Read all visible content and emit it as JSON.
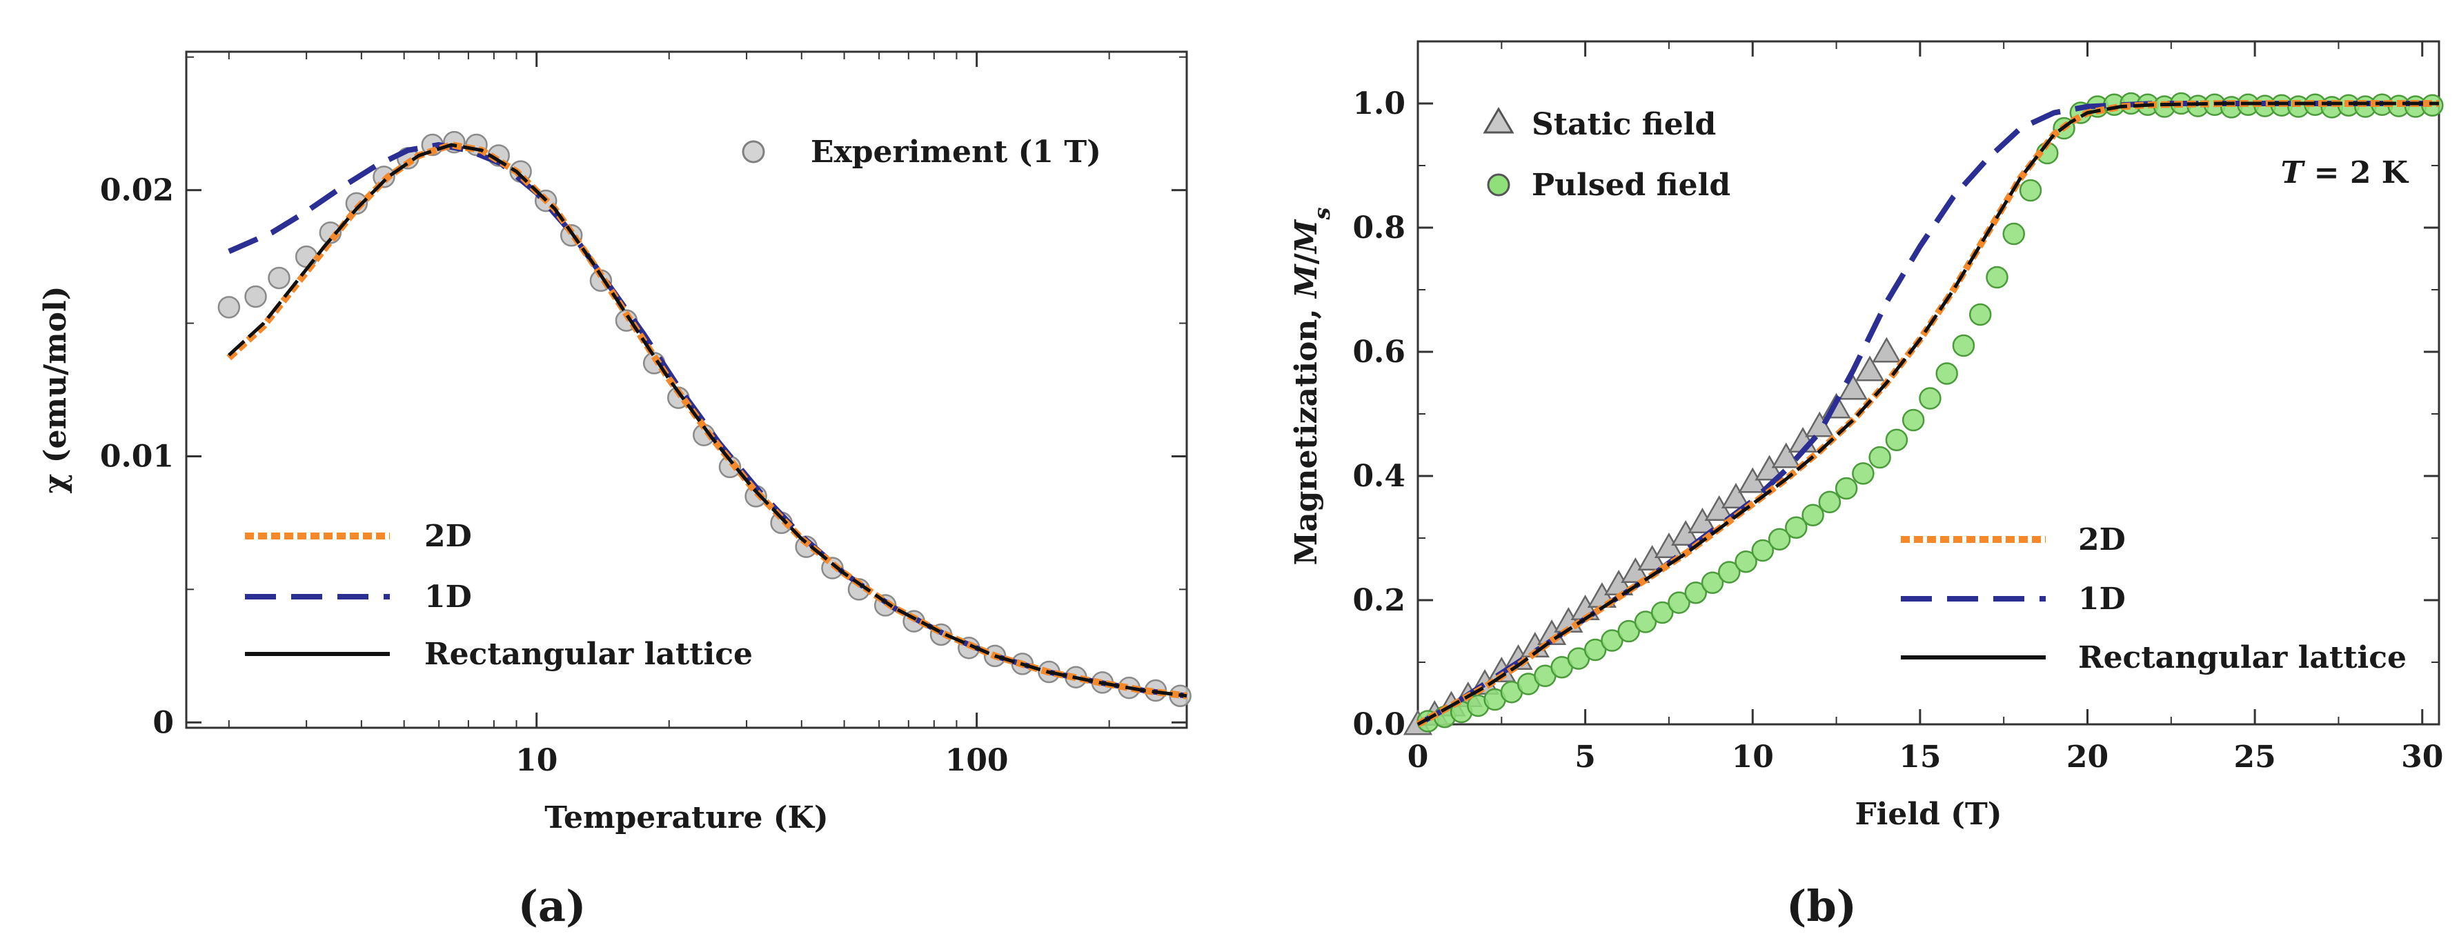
{
  "chart_data": [
    {
      "type": "line",
      "panel": "(a)",
      "xlabel": "Temperature (K)",
      "ylabel": "χ (emu/mol)",
      "xscale": "log",
      "xlim": [
        1.6,
        300
      ],
      "ylim": [
        -0.0002,
        0.0252
      ],
      "xticks": [
        {
          "v": 10,
          "label": "10"
        },
        {
          "v": 100,
          "label": "100"
        }
      ],
      "yticks": [
        {
          "v": 0.0,
          "label": "0"
        },
        {
          "v": 0.01,
          "label": "0.01"
        },
        {
          "v": 0.02,
          "label": "0.02"
        }
      ],
      "series": [
        {
          "name": "Experiment (1 T)",
          "kind": "marker",
          "marker": "circle",
          "color": "#c8c8c8",
          "x": [
            2.0,
            2.3,
            2.6,
            3.0,
            3.4,
            3.9,
            4.5,
            5.1,
            5.8,
            6.5,
            7.3,
            8.2,
            9.2,
            10.5,
            12,
            14,
            16,
            18.5,
            21,
            24,
            27.5,
            31.5,
            36,
            41,
            47,
            54,
            62,
            72,
            83,
            96,
            110,
            127,
            146,
            168,
            193,
            222,
            255,
            290
          ],
          "y": [
            0.0156,
            0.016,
            0.0167,
            0.0175,
            0.0184,
            0.0195,
            0.0205,
            0.0212,
            0.0217,
            0.0218,
            0.0217,
            0.0213,
            0.0207,
            0.0196,
            0.0183,
            0.0166,
            0.0151,
            0.0135,
            0.0122,
            0.0108,
            0.0096,
            0.0085,
            0.0075,
            0.0066,
            0.0058,
            0.005,
            0.0044,
            0.0038,
            0.0033,
            0.0028,
            0.0025,
            0.0022,
            0.0019,
            0.0017,
            0.0015,
            0.0013,
            0.0012,
            0.001
          ]
        },
        {
          "name": "2D",
          "kind": "line",
          "style": "dotted",
          "color": "#f5892a",
          "x": [
            2.0,
            2.4,
            2.8,
            3.3,
            3.9,
            4.6,
            5.4,
            6.4,
            7.5,
            9,
            11,
            13.5,
            16.5,
            20,
            25,
            31,
            40,
            50,
            65,
            85,
            110,
            145,
            190,
            240,
            300
          ],
          "y": [
            0.0137,
            0.0149,
            0.0163,
            0.0178,
            0.0193,
            0.0205,
            0.0213,
            0.0217,
            0.0215,
            0.0207,
            0.0193,
            0.0172,
            0.015,
            0.0129,
            0.0107,
            0.0088,
            0.0069,
            0.0056,
            0.0043,
            0.0033,
            0.0025,
            0.0019,
            0.0015,
            0.0012,
            0.001
          ]
        },
        {
          "name": "1D",
          "kind": "line",
          "style": "dashed",
          "color": "#2b2f94",
          "x": [
            2.0,
            2.5,
            3.0,
            3.6,
            4.3,
            5.1,
            6.0,
            7.0,
            8.3,
            10,
            12,
            14.5,
            17.5,
            21,
            26,
            32,
            40,
            50,
            65,
            85,
            110,
            145,
            190,
            240,
            300
          ],
          "y": [
            0.0177,
            0.0184,
            0.0192,
            0.0201,
            0.0209,
            0.0215,
            0.0217,
            0.0215,
            0.021,
            0.0199,
            0.0184,
            0.0165,
            0.0146,
            0.0126,
            0.0105,
            0.0087,
            0.007,
            0.0056,
            0.0043,
            0.0033,
            0.0025,
            0.0019,
            0.0015,
            0.0012,
            0.001
          ]
        },
        {
          "name": "Rectangular lattice",
          "kind": "line",
          "style": "solid",
          "color": "#111111",
          "x": [
            2.0,
            2.4,
            2.8,
            3.3,
            3.9,
            4.6,
            5.4,
            6.4,
            7.5,
            9,
            11,
            13.5,
            16.5,
            20,
            25,
            31,
            40,
            50,
            65,
            85,
            110,
            145,
            190,
            240,
            300
          ],
          "y": [
            0.0138,
            0.015,
            0.0164,
            0.0179,
            0.0193,
            0.0205,
            0.0213,
            0.0217,
            0.0215,
            0.0207,
            0.0193,
            0.0172,
            0.015,
            0.0129,
            0.0107,
            0.0088,
            0.0069,
            0.0056,
            0.0043,
            0.0033,
            0.0025,
            0.0019,
            0.0015,
            0.0012,
            0.001
          ]
        }
      ],
      "legend": [
        {
          "label": "Experiment (1 T)",
          "ref": 0,
          "placement": "top-right"
        },
        {
          "label": "2D",
          "ref": 1,
          "placement": "bottom-left"
        },
        {
          "label": "1D",
          "ref": 2,
          "placement": "bottom-left"
        },
        {
          "label": "Rectangular lattice",
          "ref": 3,
          "placement": "bottom-left"
        }
      ],
      "caption": "(a)",
      "annotations": []
    },
    {
      "type": "line",
      "panel": "(b)",
      "xlabel": "Field (T)",
      "ylabel": "Magnetization, M/M_s",
      "xscale": "linear",
      "xlim": [
        0,
        30.5
      ],
      "ylim": [
        0,
        1.1
      ],
      "xticks": [
        {
          "v": 0,
          "label": "0"
        },
        {
          "v": 5,
          "label": "5"
        },
        {
          "v": 10,
          "label": "10"
        },
        {
          "v": 15,
          "label": "15"
        },
        {
          "v": 20,
          "label": "20"
        },
        {
          "v": 25,
          "label": "25"
        },
        {
          "v": 30,
          "label": "30"
        }
      ],
      "yticks": [
        {
          "v": 0.0,
          "label": "0.0"
        },
        {
          "v": 0.2,
          "label": "0.2"
        },
        {
          "v": 0.4,
          "label": "0.4"
        },
        {
          "v": 0.6,
          "label": "0.6"
        },
        {
          "v": 0.8,
          "label": "0.8"
        },
        {
          "v": 1.0,
          "label": "1.0"
        }
      ],
      "series": [
        {
          "name": "Static field",
          "kind": "marker",
          "marker": "triangle",
          "color": "#c0c0c0",
          "x": [
            0,
            0.5,
            1,
            1.5,
            2,
            2.5,
            3,
            3.5,
            4,
            4.5,
            5,
            5.5,
            6,
            6.5,
            7,
            7.5,
            8,
            8.5,
            9,
            9.5,
            10,
            10.5,
            11,
            11.5,
            12,
            12.5,
            13,
            13.5,
            14
          ],
          "y": [
            0.0,
            0.015,
            0.03,
            0.045,
            0.065,
            0.085,
            0.105,
            0.125,
            0.145,
            0.165,
            0.185,
            0.205,
            0.225,
            0.245,
            0.265,
            0.285,
            0.305,
            0.325,
            0.345,
            0.365,
            0.39,
            0.41,
            0.43,
            0.455,
            0.48,
            0.51,
            0.54,
            0.57,
            0.6
          ]
        },
        {
          "name": "Pulsed field",
          "kind": "marker",
          "marker": "circle",
          "color": "#8fe07a",
          "x": [
            0.3,
            0.8,
            1.3,
            1.8,
            2.3,
            2.8,
            3.3,
            3.8,
            4.3,
            4.8,
            5.3,
            5.8,
            6.3,
            6.8,
            7.3,
            7.8,
            8.3,
            8.8,
            9.3,
            9.8,
            10.3,
            10.8,
            11.3,
            11.8,
            12.3,
            12.8,
            13.3,
            13.8,
            14.3,
            14.8,
            15.3,
            15.8,
            16.3,
            16.8,
            17.3,
            17.8,
            18.3,
            18.8,
            19.3,
            19.8,
            20.3,
            20.8,
            21.3,
            21.8,
            22.3,
            22.8,
            23.3,
            23.8,
            24.3,
            24.8,
            25.3,
            25.8,
            26.3,
            26.8,
            27.3,
            27.8,
            28.3,
            28.8,
            29.3,
            29.8,
            30.3
          ],
          "y": [
            0.005,
            0.012,
            0.02,
            0.03,
            0.04,
            0.052,
            0.065,
            0.078,
            0.092,
            0.106,
            0.12,
            0.135,
            0.15,
            0.165,
            0.18,
            0.196,
            0.212,
            0.228,
            0.245,
            0.262,
            0.28,
            0.298,
            0.317,
            0.337,
            0.358,
            0.38,
            0.404,
            0.43,
            0.458,
            0.49,
            0.525,
            0.565,
            0.61,
            0.66,
            0.72,
            0.79,
            0.86,
            0.92,
            0.96,
            0.985,
            0.995,
            0.998,
            1.0,
            0.998,
            0.995,
            1.0,
            0.996,
            0.998,
            0.994,
            0.998,
            0.996,
            0.997,
            0.995,
            0.998,
            0.994,
            0.997,
            0.995,
            0.998,
            0.996,
            0.995,
            0.997
          ]
        },
        {
          "name": "2D",
          "kind": "line",
          "style": "dotted",
          "color": "#f5892a",
          "x": [
            0,
            1,
            2,
            3,
            4,
            5,
            6,
            7,
            8,
            9,
            10,
            11,
            12,
            13,
            14,
            15,
            16,
            17,
            18,
            19,
            19.5,
            20,
            21,
            22,
            24,
            26,
            28,
            30,
            30.5
          ],
          "y": [
            0.0,
            0.03,
            0.06,
            0.095,
            0.135,
            0.17,
            0.205,
            0.24,
            0.275,
            0.315,
            0.355,
            0.395,
            0.44,
            0.49,
            0.55,
            0.62,
            0.7,
            0.79,
            0.88,
            0.95,
            0.97,
            0.985,
            0.995,
            0.998,
            1.0,
            1.0,
            1.0,
            1.0,
            1.0
          ]
        },
        {
          "name": "1D",
          "kind": "line",
          "style": "dashed",
          "color": "#2b2f94",
          "x": [
            0,
            1,
            2,
            3,
            4,
            5,
            6,
            7,
            8,
            9,
            10,
            11,
            12,
            13,
            14,
            15,
            16,
            17,
            18,
            19,
            20,
            22,
            24,
            26,
            28,
            30,
            30.5
          ],
          "y": [
            0.0,
            0.03,
            0.065,
            0.1,
            0.135,
            0.17,
            0.205,
            0.24,
            0.28,
            0.32,
            0.36,
            0.41,
            0.47,
            0.57,
            0.68,
            0.77,
            0.85,
            0.91,
            0.96,
            0.985,
            0.995,
            1.0,
            1.0,
            1.0,
            1.0,
            1.0,
            1.0
          ]
        },
        {
          "name": "Rectangular lattice",
          "kind": "line",
          "style": "solid",
          "color": "#111111",
          "x": [
            0,
            1,
            2,
            3,
            4,
            5,
            6,
            7,
            8,
            9,
            10,
            11,
            12,
            13,
            14,
            15,
            16,
            17,
            18,
            19,
            19.5,
            20,
            21,
            22,
            24,
            26,
            28,
            30,
            30.5
          ],
          "y": [
            0.0,
            0.03,
            0.06,
            0.095,
            0.135,
            0.17,
            0.205,
            0.24,
            0.275,
            0.315,
            0.355,
            0.395,
            0.44,
            0.49,
            0.55,
            0.62,
            0.7,
            0.79,
            0.88,
            0.95,
            0.97,
            0.985,
            0.995,
            0.998,
            1.0,
            1.0,
            1.0,
            1.0,
            1.0
          ]
        }
      ],
      "legend": [
        {
          "label": "Static field",
          "ref": 0,
          "placement": "top-left"
        },
        {
          "label": "Pulsed field",
          "ref": 1,
          "placement": "top-left"
        },
        {
          "label": "2D",
          "ref": 2,
          "placement": "bottom-right"
        },
        {
          "label": "1D",
          "ref": 3,
          "placement": "bottom-right"
        },
        {
          "label": "Rectangular lattice",
          "ref": 4,
          "placement": "bottom-right"
        }
      ],
      "caption": "(b)",
      "annotations": [
        {
          "text": "T = 2 K",
          "placement": "top-right"
        }
      ]
    }
  ]
}
